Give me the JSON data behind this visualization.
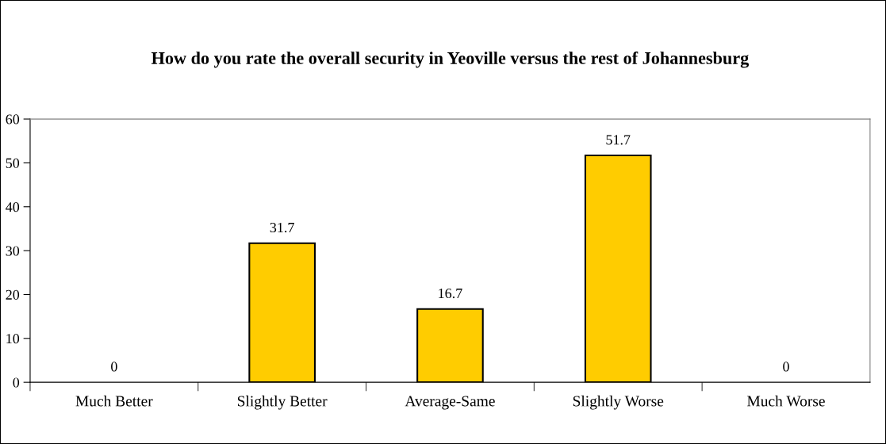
{
  "chart_data": {
    "type": "bar",
    "title": "How do you rate the overall security in Yeoville versus the rest of Johannesburg",
    "categories": [
      "Much Better",
      "Slightly Better",
      "Average-Same",
      "Slightly Worse",
      "Much Worse"
    ],
    "values": [
      0,
      31.7,
      16.7,
      51.7,
      0
    ],
    "color": "#ffcc00",
    "ylim": [
      0,
      60
    ],
    "yticks": [
      0,
      10,
      20,
      30,
      40,
      50,
      60
    ],
    "grid": false,
    "data_labels": true
  }
}
